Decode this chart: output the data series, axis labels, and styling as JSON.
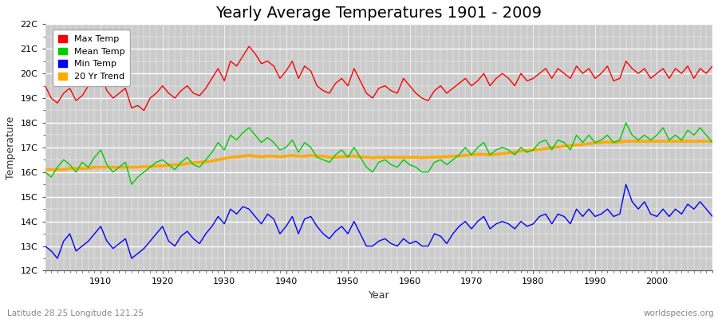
{
  "title": "Yearly Average Temperatures 1901 - 2009",
  "xlabel": "Year",
  "ylabel": "Temperature",
  "subtitle_left": "Latitude 28.25 Longitude 121.25",
  "subtitle_right": "worldspecies.org",
  "ylim": [
    12,
    22
  ],
  "yticks": [
    12,
    13,
    14,
    15,
    16,
    17,
    18,
    19,
    20,
    21,
    22
  ],
  "ytick_labels": [
    "12C",
    "13C",
    "14C",
    "15C",
    "16C",
    "17C",
    "18C",
    "19C",
    "20C",
    "21C",
    "22C"
  ],
  "xlim": [
    1901,
    2009
  ],
  "xticks": [
    1910,
    1920,
    1930,
    1940,
    1950,
    1960,
    1970,
    1980,
    1990,
    2000
  ],
  "legend_labels": [
    "Max Temp",
    "Mean Temp",
    "Min Temp",
    "20 Yr Trend"
  ],
  "legend_colors": [
    "#ff0000",
    "#00cc00",
    "#0000ff",
    "#ffaa00"
  ],
  "max_temp": [
    19.5,
    19.0,
    18.8,
    19.2,
    19.4,
    18.9,
    19.1,
    19.5,
    19.8,
    20.0,
    19.3,
    19.0,
    19.2,
    19.4,
    18.6,
    18.7,
    18.5,
    19.0,
    19.2,
    19.5,
    19.2,
    19.0,
    19.3,
    19.5,
    19.2,
    19.1,
    19.4,
    19.8,
    20.2,
    19.7,
    20.5,
    20.3,
    20.7,
    21.1,
    20.8,
    20.4,
    20.5,
    20.3,
    19.8,
    20.1,
    20.5,
    19.8,
    20.3,
    20.1,
    19.5,
    19.3,
    19.2,
    19.6,
    19.8,
    19.5,
    20.2,
    19.7,
    19.2,
    19.0,
    19.4,
    19.5,
    19.3,
    19.2,
    19.8,
    19.5,
    19.2,
    19.0,
    18.9,
    19.3,
    19.5,
    19.2,
    19.4,
    19.6,
    19.8,
    19.5,
    19.7,
    20.0,
    19.5,
    19.8,
    20.0,
    19.8,
    19.5,
    20.0,
    19.7,
    19.8,
    20.0,
    20.2,
    19.8,
    20.2,
    20.0,
    19.8,
    20.3,
    20.0,
    20.2,
    19.8,
    20.0,
    20.3,
    19.7,
    19.8,
    20.5,
    20.2,
    20.0,
    20.2,
    19.8,
    20.0,
    20.2,
    19.8,
    20.2,
    20.0,
    20.3,
    19.8,
    20.2,
    20.0,
    20.3
  ],
  "mean_temp": [
    16.0,
    15.8,
    16.2,
    16.5,
    16.3,
    16.0,
    16.4,
    16.2,
    16.6,
    16.9,
    16.3,
    16.0,
    16.2,
    16.4,
    15.5,
    15.8,
    16.0,
    16.2,
    16.4,
    16.5,
    16.3,
    16.1,
    16.4,
    16.6,
    16.3,
    16.2,
    16.5,
    16.8,
    17.2,
    16.9,
    17.5,
    17.3,
    17.6,
    17.8,
    17.5,
    17.2,
    17.4,
    17.2,
    16.9,
    17.0,
    17.3,
    16.8,
    17.2,
    17.0,
    16.6,
    16.5,
    16.4,
    16.7,
    16.9,
    16.6,
    17.0,
    16.6,
    16.2,
    16.0,
    16.4,
    16.5,
    16.3,
    16.2,
    16.5,
    16.3,
    16.2,
    16.0,
    16.0,
    16.4,
    16.5,
    16.3,
    16.5,
    16.7,
    17.0,
    16.7,
    17.0,
    17.2,
    16.7,
    16.9,
    17.0,
    16.9,
    16.7,
    17.0,
    16.8,
    16.9,
    17.2,
    17.3,
    16.9,
    17.3,
    17.2,
    16.9,
    17.5,
    17.2,
    17.5,
    17.2,
    17.3,
    17.5,
    17.2,
    17.3,
    18.0,
    17.5,
    17.3,
    17.5,
    17.3,
    17.5,
    17.8,
    17.3,
    17.5,
    17.3,
    17.7,
    17.5,
    17.8,
    17.5,
    17.2
  ],
  "min_temp": [
    13.0,
    12.8,
    12.5,
    13.2,
    13.5,
    12.8,
    13.0,
    13.2,
    13.5,
    13.8,
    13.2,
    12.9,
    13.1,
    13.3,
    12.5,
    12.7,
    12.9,
    13.2,
    13.5,
    13.8,
    13.2,
    13.0,
    13.4,
    13.6,
    13.3,
    13.1,
    13.5,
    13.8,
    14.2,
    13.9,
    14.5,
    14.3,
    14.6,
    14.5,
    14.2,
    13.9,
    14.3,
    14.1,
    13.5,
    13.8,
    14.2,
    13.5,
    14.1,
    14.2,
    13.8,
    13.5,
    13.3,
    13.6,
    13.8,
    13.5,
    14.0,
    13.5,
    13.0,
    13.0,
    13.2,
    13.3,
    13.1,
    13.0,
    13.3,
    13.1,
    13.2,
    13.0,
    13.0,
    13.5,
    13.4,
    13.1,
    13.5,
    13.8,
    14.0,
    13.7,
    14.0,
    14.2,
    13.7,
    13.9,
    14.0,
    13.9,
    13.7,
    14.0,
    13.8,
    13.9,
    14.2,
    14.3,
    13.9,
    14.3,
    14.2,
    13.9,
    14.5,
    14.2,
    14.5,
    14.2,
    14.3,
    14.5,
    14.2,
    14.3,
    15.5,
    14.8,
    14.5,
    14.8,
    14.3,
    14.2,
    14.5,
    14.2,
    14.5,
    14.3,
    14.7,
    14.5,
    14.8,
    14.5,
    14.2
  ],
  "trend_temp": [
    16.1,
    16.1,
    16.1,
    16.1,
    16.15,
    16.15,
    16.15,
    16.15,
    16.2,
    16.2,
    16.2,
    16.2,
    16.2,
    16.2,
    16.2,
    16.2,
    16.22,
    16.22,
    16.25,
    16.25,
    16.28,
    16.3,
    16.3,
    16.35,
    16.38,
    16.4,
    16.42,
    16.45,
    16.5,
    16.55,
    16.6,
    16.62,
    16.65,
    16.68,
    16.65,
    16.62,
    16.65,
    16.65,
    16.62,
    16.65,
    16.68,
    16.65,
    16.65,
    16.68,
    16.65,
    16.65,
    16.6,
    16.6,
    16.62,
    16.65,
    16.65,
    16.62,
    16.6,
    16.58,
    16.6,
    16.6,
    16.6,
    16.6,
    16.6,
    16.6,
    16.6,
    16.58,
    16.6,
    16.6,
    16.62,
    16.62,
    16.65,
    16.65,
    16.68,
    16.7,
    16.72,
    16.72,
    16.7,
    16.72,
    16.75,
    16.78,
    16.8,
    16.85,
    16.88,
    16.9,
    16.92,
    16.95,
    17.0,
    17.02,
    17.05,
    17.08,
    17.1,
    17.12,
    17.15,
    17.18,
    17.2,
    17.22,
    17.2,
    17.22,
    17.25,
    17.25,
    17.25,
    17.25,
    17.25,
    17.25,
    17.25,
    17.25,
    17.25,
    17.25,
    17.25,
    17.25,
    17.25,
    17.25,
    17.25
  ],
  "line_color_max": "#ff0000",
  "line_color_mean": "#00cc00",
  "line_color_min": "#0000ff",
  "line_color_trend": "#ffaa00",
  "bg_color": "#cbcbcb",
  "grid_color": "#ffffff",
  "fig_bg": "#ffffff",
  "title_fontsize": 14,
  "axis_fontsize": 9,
  "tick_fontsize": 8,
  "legend_fontsize": 8,
  "linewidth": 1.0,
  "trend_linewidth": 2.5
}
